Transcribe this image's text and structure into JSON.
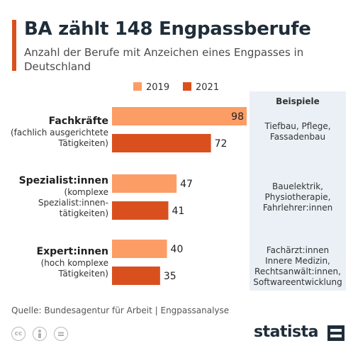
{
  "title": "BA zählt 148 Engpassberufe",
  "subtitle": "Anzahl der Berufe mit Anzeichen eines Engpasses in Deutschland",
  "source": "Quelle: Bundesagentur für Arbeit | Engpassanalyse",
  "brand": "statista",
  "colors": {
    "2019": "#fc9d66",
    "2021": "#d9501e",
    "accent": "#d9501e",
    "panel": "#eaf0f5"
  },
  "side_panel": {
    "header": "Beispiele",
    "examples": [
      [
        "Tiefbau, Pflege,",
        "Fassadenbau"
      ],
      [
        "Bauelektrik,",
        "Physiotherapie,",
        "Fahrlehrer:innen"
      ],
      [
        "Fachärzt:innen",
        "Innere Medizin,",
        "Rechtsanwält:innen,",
        "Softwareentwicklung"
      ]
    ]
  },
  "chart_data": {
    "type": "bar",
    "orientation": "horizontal",
    "legend_position": "top",
    "categories": [
      {
        "name": "Fachkräfte",
        "detail": [
          "(fachlich ausgerichtete",
          "Tätigkeiten)"
        ]
      },
      {
        "name": "Spezialist:innen",
        "detail": [
          "(komplexe",
          "Spezialist:innen-",
          "tätigkeiten)"
        ]
      },
      {
        "name": "Expert:innen",
        "detail": [
          "(hoch komplexe",
          "Tätigkeiten)"
        ]
      }
    ],
    "series": [
      {
        "name": "2019",
        "values": [
          98,
          47,
          40
        ]
      },
      {
        "name": "2021",
        "values": [
          72,
          41,
          35
        ]
      }
    ],
    "xlim": [
      0,
      98
    ]
  },
  "icons": [
    "cc-icon",
    "person-icon",
    "equals-icon",
    "statista-logo-icon"
  ]
}
